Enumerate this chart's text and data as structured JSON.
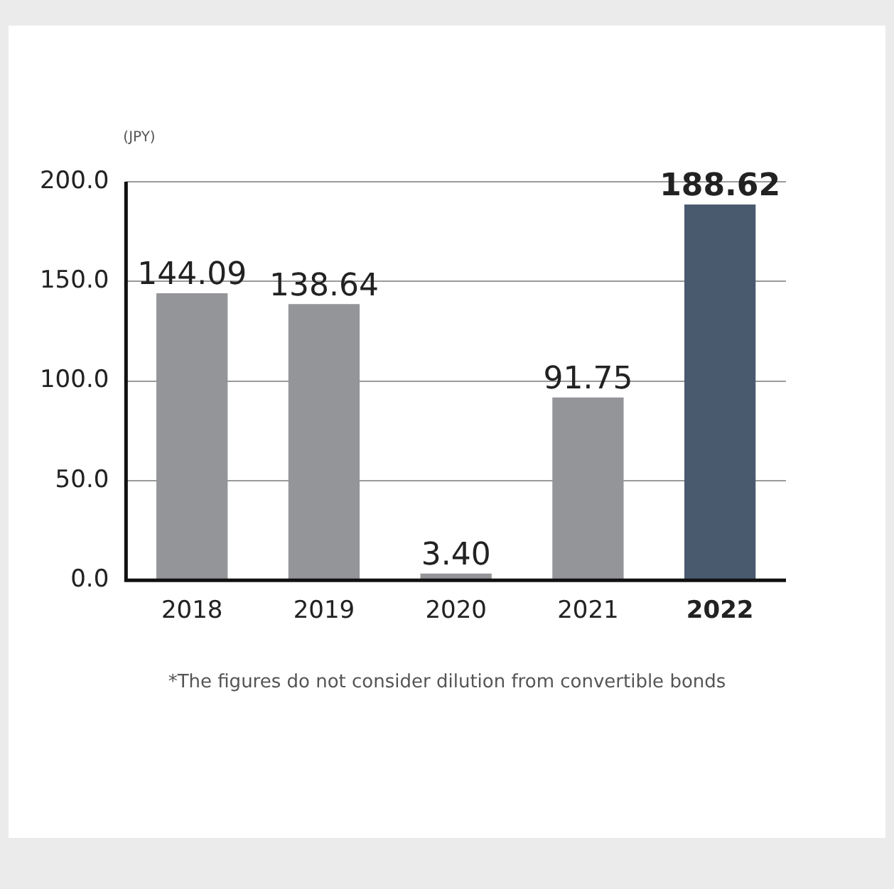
{
  "chart_data": {
    "type": "bar",
    "ylabel": "(JPY)",
    "categories": [
      "2018",
      "2019",
      "2020",
      "2021",
      "2022"
    ],
    "values": [
      144.09,
      138.64,
      3.4,
      91.75,
      188.62
    ],
    "value_labels": [
      "144.09",
      "138.64",
      "3.40",
      "91.75",
      "188.62"
    ],
    "colors": [
      "#939598",
      "#939598",
      "#939598",
      "#939598",
      "#4a5a6e"
    ],
    "ylim": [
      0,
      200
    ],
    "yticks": [
      {
        "value": 0,
        "label": "0.0"
      },
      {
        "value": 50,
        "label": "50.0"
      },
      {
        "value": 100,
        "label": "100.0"
      },
      {
        "value": 150,
        "label": "150.0"
      },
      {
        "value": 200,
        "label": "200.0"
      }
    ],
    "grid": "y",
    "legend": false,
    "annotations": [
      "*The figures do not consider dilution from convertible bonds"
    ]
  }
}
